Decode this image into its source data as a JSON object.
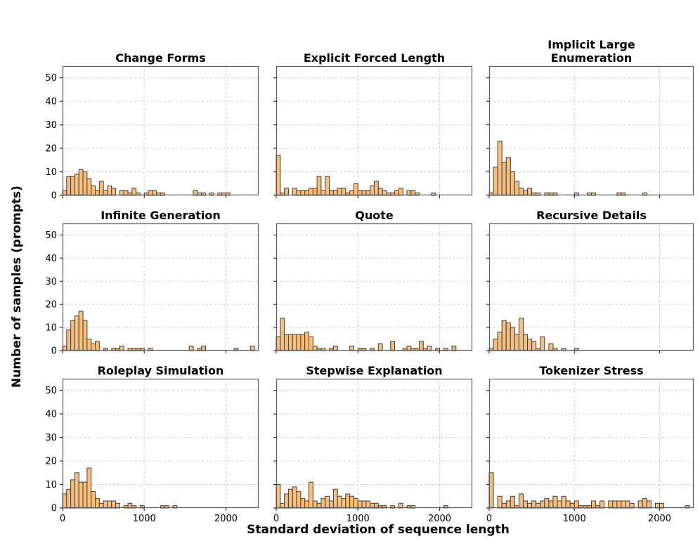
{
  "figure": {
    "xlabel": "Standard deviation of sequence length",
    "ylabel": "Number of samples (prompts)",
    "colors": {
      "bar_fill": "#FBBE78",
      "bar_edge": "#3f3f3f",
      "spine": "#5a5a5a",
      "grid": "#cccccc",
      "tick": "#333333",
      "background": "#ffffff",
      "text": "#000000"
    },
    "axes": {
      "xlim": [
        0,
        2400
      ],
      "ylim": [
        0,
        55
      ],
      "xticks": [
        0,
        1000,
        2000
      ],
      "xtick_labels": [
        "0",
        "1000",
        "2000"
      ],
      "yticks": [
        0,
        10,
        20,
        30,
        40,
        50
      ],
      "ytick_labels": [
        "0",
        "10",
        "20",
        "30",
        "40",
        "50"
      ],
      "grid": "dashed",
      "bin_start": 0,
      "bin_width": 50
    }
  },
  "chart_data": [
    {
      "type": "bar",
      "title": "Change Forms",
      "bin_width": 50,
      "values": [
        2,
        8,
        8,
        9,
        11,
        10,
        7,
        4,
        2,
        6,
        2,
        4,
        3,
        0,
        2,
        2,
        1,
        3,
        1,
        0,
        1,
        2,
        2,
        1,
        1,
        0,
        0,
        0,
        0,
        0,
        0,
        0,
        2,
        1,
        1,
        0,
        1,
        0,
        1,
        1,
        1,
        0,
        0,
        0,
        0,
        0,
        0,
        0
      ]
    },
    {
      "type": "bar",
      "title": "Explicit Forced Length",
      "bin_width": 50,
      "values": [
        17,
        1,
        3,
        0,
        3,
        2,
        2,
        2,
        3,
        3,
        8,
        2,
        8,
        2,
        2,
        3,
        3,
        1,
        2,
        5,
        2,
        2,
        2,
        4,
        6,
        3,
        2,
        1,
        1,
        2,
        3,
        0,
        2,
        2,
        1,
        0,
        0,
        0,
        1,
        0,
        0,
        0,
        0,
        0,
        0,
        0,
        0,
        0
      ]
    },
    {
      "type": "bar",
      "title": "Implicit Large\nEnumeration",
      "bin_width": 50,
      "values": [
        1,
        12,
        23,
        14,
        16,
        10,
        6,
        3,
        2,
        3,
        1,
        1,
        0,
        1,
        1,
        1,
        0,
        0,
        0,
        0,
        1,
        0,
        0,
        1,
        1,
        0,
        0,
        0,
        0,
        0,
        1,
        1,
        0,
        0,
        0,
        0,
        1,
        0,
        0,
        0,
        0,
        0,
        0,
        0,
        0,
        0,
        0,
        0
      ]
    },
    {
      "type": "bar",
      "title": "Infinite Generation",
      "bin_width": 50,
      "values": [
        2,
        9,
        13,
        15,
        17,
        13,
        5,
        3,
        4,
        0,
        1,
        0,
        1,
        1,
        2,
        0,
        1,
        1,
        1,
        1,
        0,
        1,
        0,
        0,
        0,
        0,
        0,
        0,
        0,
        0,
        0,
        2,
        0,
        1,
        2,
        0,
        0,
        0,
        0,
        0,
        0,
        0,
        1,
        0,
        0,
        0,
        2,
        0
      ]
    },
    {
      "type": "bar",
      "title": "Quote",
      "bin_width": 50,
      "values": [
        6,
        14,
        7,
        7,
        7,
        7,
        7,
        8,
        6,
        2,
        1,
        1,
        0,
        1,
        2,
        0,
        0,
        0,
        2,
        0,
        1,
        1,
        0,
        1,
        0,
        3,
        0,
        0,
        4,
        0,
        0,
        1,
        2,
        1,
        1,
        4,
        1,
        2,
        0,
        1,
        0,
        1,
        0,
        2,
        0,
        0,
        0,
        0
      ]
    },
    {
      "type": "bar",
      "title": "Recursive Details",
      "bin_width": 50,
      "values": [
        1,
        5,
        8,
        13,
        12,
        10,
        7,
        14,
        7,
        5,
        4,
        1,
        6,
        0,
        3,
        1,
        0,
        1,
        0,
        0,
        1,
        0,
        0,
        0,
        0,
        0,
        0,
        0,
        0,
        0,
        0,
        0,
        0,
        0,
        0,
        0,
        0,
        0,
        0,
        0,
        0,
        0,
        0,
        0,
        0,
        0,
        0,
        0
      ]
    },
    {
      "type": "bar",
      "title": "Roleplay Simulation",
      "bin_width": 50,
      "values": [
        6,
        8,
        12,
        15,
        11,
        11,
        17,
        7,
        4,
        2,
        3,
        3,
        3,
        2,
        0,
        1,
        2,
        1,
        0,
        1,
        0,
        0,
        0,
        0,
        1,
        1,
        0,
        1,
        0,
        0,
        0,
        0,
        0,
        0,
        0,
        0,
        0,
        0,
        0,
        0,
        0,
        0,
        0,
        0,
        0,
        0,
        0,
        0
      ]
    },
    {
      "type": "bar",
      "title": "Stepwise Explanation",
      "bin_width": 50,
      "values": [
        10,
        2,
        6,
        8,
        9,
        7,
        4,
        3,
        11,
        3,
        2,
        4,
        5,
        3,
        8,
        5,
        4,
        6,
        5,
        4,
        3,
        3,
        3,
        2,
        2,
        1,
        1,
        0,
        1,
        0,
        2,
        0,
        1,
        1,
        0,
        0,
        0,
        0,
        0,
        0,
        0,
        1,
        0,
        0,
        0,
        0,
        0,
        0
      ]
    },
    {
      "type": "bar",
      "title": "Tokenizer Stress",
      "bin_width": 50,
      "values": [
        15,
        0,
        5,
        2,
        3,
        5,
        1,
        6,
        3,
        2,
        3,
        2,
        3,
        4,
        3,
        5,
        3,
        5,
        3,
        2,
        3,
        1,
        1,
        1,
        3,
        1,
        3,
        0,
        3,
        3,
        3,
        3,
        3,
        2,
        0,
        3,
        4,
        3,
        0,
        2,
        2,
        0,
        0,
        0,
        0,
        0,
        1,
        0
      ]
    }
  ]
}
